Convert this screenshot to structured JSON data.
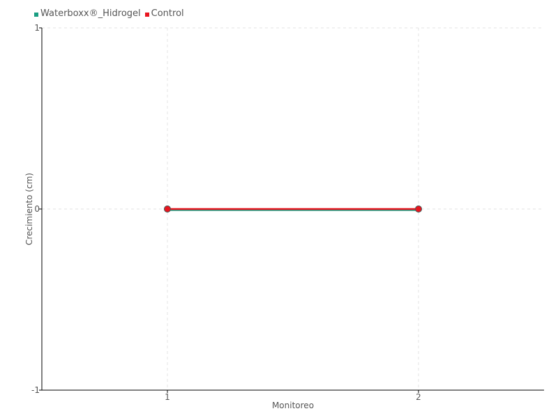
{
  "chart_data": {
    "type": "line",
    "xlabel": "Monitoreo",
    "ylabel": "Crecimiento (cm)",
    "x": [
      1,
      2
    ],
    "xlim": [
      0.5,
      2.5
    ],
    "ylim": [
      -1,
      1
    ],
    "yticks": [
      -1,
      0,
      1
    ],
    "xticks": [
      1,
      2
    ],
    "grid": true,
    "legend": "top-left",
    "series": [
      {
        "name": "Waterboxx®_Hidrogel",
        "values": [
          0,
          0
        ],
        "color": "#1a9e82"
      },
      {
        "name": "Control",
        "values": [
          0,
          0
        ],
        "color": "#e8151f"
      }
    ]
  }
}
